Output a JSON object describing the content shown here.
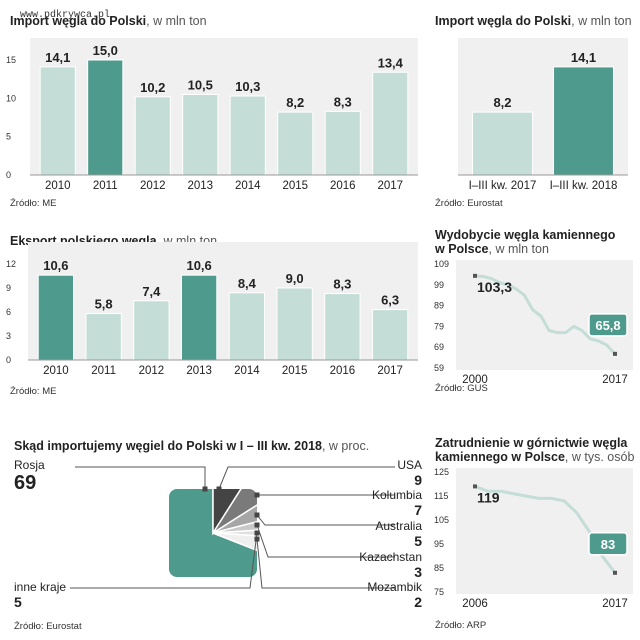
{
  "watermark": "www.pdkrywca.pl",
  "chart_data": [
    {
      "id": "import_annual",
      "type": "bar",
      "title": "Import węgla do Polski",
      "unit": ", w mln ton",
      "source": "Źródło: ME",
      "categories": [
        "2010",
        "2011",
        "2012",
        "2013",
        "2014",
        "2015",
        "2016",
        "2017"
      ],
      "values": [
        14.1,
        15.0,
        10.2,
        10.5,
        10.3,
        8.2,
        8.3,
        13.4
      ],
      "labels": [
        "14,1",
        "15,0",
        "10,2",
        "10,5",
        "10,3",
        "8,2",
        "8,3",
        "13,4"
      ],
      "highlight": [
        1
      ],
      "yticks": [
        0,
        5,
        10,
        15
      ],
      "ylim": [
        0,
        15
      ]
    },
    {
      "id": "import_quarter",
      "type": "bar",
      "title": "Import węgla do Polski",
      "unit": ", w mln ton",
      "source": "Źródło: Eurostat",
      "categories": [
        "I–III kw. 2017",
        "I–III kw. 2018"
      ],
      "values": [
        8.2,
        14.1
      ],
      "labels": [
        "8,2",
        "14,1"
      ],
      "highlight": [
        1
      ],
      "ylim": [
        0,
        15
      ]
    },
    {
      "id": "export_annual",
      "type": "bar",
      "title": "Eksport polskiego węgla",
      "unit": ", w mln ton",
      "source": "Źródło: ME",
      "categories": [
        "2010",
        "2011",
        "2012",
        "2013",
        "2014",
        "2015",
        "2016",
        "2017"
      ],
      "values": [
        10.6,
        5.8,
        7.4,
        10.6,
        8.4,
        9.0,
        8.3,
        6.3
      ],
      "labels": [
        "10,6",
        "5,8",
        "7,4",
        "10,6",
        "8,4",
        "9,0",
        "8,3",
        "6,3"
      ],
      "highlight": [
        0,
        3
      ],
      "yticks": [
        0,
        3,
        6,
        9,
        12
      ],
      "ylim": [
        0,
        12
      ]
    },
    {
      "id": "mining",
      "type": "line",
      "title_line1": "Wydobycie węgla kamiennego",
      "title_line2": "w Polsce",
      "unit": ", w mln ton",
      "source": "Źródło: GUS",
      "x": [
        2000,
        2001,
        2002,
        2003,
        2004,
        2005,
        2006,
        2007,
        2008,
        2009,
        2010,
        2011,
        2012,
        2013,
        2014,
        2015,
        2016,
        2017
      ],
      "y": [
        103.3,
        103.0,
        102.0,
        100.0,
        99.0,
        97.0,
        94.0,
        87.0,
        84.0,
        77.0,
        76.0,
        76.0,
        79.0,
        77.0,
        73.0,
        72.0,
        70.0,
        65.8
      ],
      "start_label": "103,3",
      "end_label": "65,8",
      "xticklabels": [
        "2000",
        "2017"
      ],
      "yticks": [
        59,
        69,
        79,
        89,
        99,
        109
      ],
      "ylim": [
        59,
        109
      ]
    },
    {
      "id": "employment",
      "type": "line",
      "title_line1": "Zatrudnienie w górnictwie węgla",
      "title_line2": "kamiennego w Polsce",
      "unit": ", w tys. osób",
      "source": "Źródło: ARP",
      "x": [
        2006,
        2007,
        2008,
        2009,
        2010,
        2011,
        2012,
        2013,
        2014,
        2015,
        2016,
        2017
      ],
      "y": [
        119,
        117,
        117,
        116,
        115,
        114,
        114,
        113,
        108,
        100,
        90,
        83
      ],
      "start_label": "119",
      "end_label": "83",
      "xticklabels": [
        "2006",
        "2017"
      ],
      "yticks": [
        75,
        85,
        95,
        105,
        115,
        125
      ],
      "ylim": [
        75,
        125
      ]
    },
    {
      "id": "import_sources",
      "type": "pie",
      "title": "Skąd importujemy węgiel do Polski w I – III kw. 2018",
      "unit": ", w proc.",
      "source": "Źródło: Eurostat",
      "slices": [
        {
          "name": "Rosja",
          "value": 69,
          "label": "69",
          "color": "#4e9a8c"
        },
        {
          "name": "USA",
          "value": 9,
          "label": "9",
          "color": "#444444"
        },
        {
          "name": "Kolumbia",
          "value": 7,
          "label": "7",
          "color": "#7a7a7a"
        },
        {
          "name": "Australia",
          "value": 5,
          "label": "5",
          "color": "#a6a6a6"
        },
        {
          "name": "Kazachstan",
          "value": 3,
          "label": "3",
          "color": "#c9c9c9"
        },
        {
          "name": "Mozambik",
          "value": 2,
          "label": "2",
          "color": "#e0e0e0"
        },
        {
          "name": "inne kraje",
          "value": 5,
          "label": "5",
          "color": "#efefef"
        }
      ]
    }
  ],
  "colors": {
    "bar_light": "#c4ddd7",
    "bar_dark": "#4e9a8c",
    "line": "#c4ddd7",
    "panel_bg": "#f0f0f0"
  }
}
